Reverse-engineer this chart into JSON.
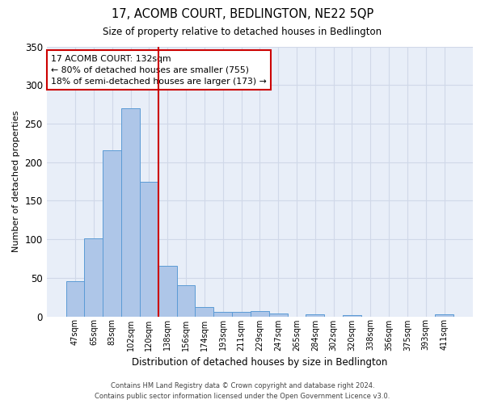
{
  "title": "17, ACOMB COURT, BEDLINGTON, NE22 5QP",
  "subtitle": "Size of property relative to detached houses in Bedlington",
  "xlabel": "Distribution of detached houses by size in Bedlington",
  "ylabel": "Number of detached properties",
  "bar_labels": [
    "47sqm",
    "65sqm",
    "83sqm",
    "102sqm",
    "120sqm",
    "138sqm",
    "156sqm",
    "174sqm",
    "193sqm",
    "211sqm",
    "229sqm",
    "247sqm",
    "265sqm",
    "284sqm",
    "302sqm",
    "320sqm",
    "338sqm",
    "356sqm",
    "375sqm",
    "393sqm",
    "411sqm"
  ],
  "bar_values": [
    46,
    101,
    215,
    270,
    175,
    66,
    40,
    12,
    6,
    6,
    7,
    4,
    0,
    3,
    0,
    2,
    0,
    0,
    0,
    0,
    3
  ],
  "bar_color": "#aec6e8",
  "bar_edge_color": "#5b9bd5",
  "grid_color": "#d0d8e8",
  "background_color": "#e8eef8",
  "vline_x": 4.5,
  "vline_color": "#cc0000",
  "annotation_text": "17 ACOMB COURT: 132sqm\n← 80% of detached houses are smaller (755)\n18% of semi-detached houses are larger (173) →",
  "annotation_box_color": "#ffffff",
  "annotation_box_edge": "#cc0000",
  "ylim": [
    0,
    350
  ],
  "yticks": [
    0,
    50,
    100,
    150,
    200,
    250,
    300,
    350
  ],
  "footer_line1": "Contains HM Land Registry data © Crown copyright and database right 2024.",
  "footer_line2": "Contains public sector information licensed under the Open Government Licence v3.0."
}
